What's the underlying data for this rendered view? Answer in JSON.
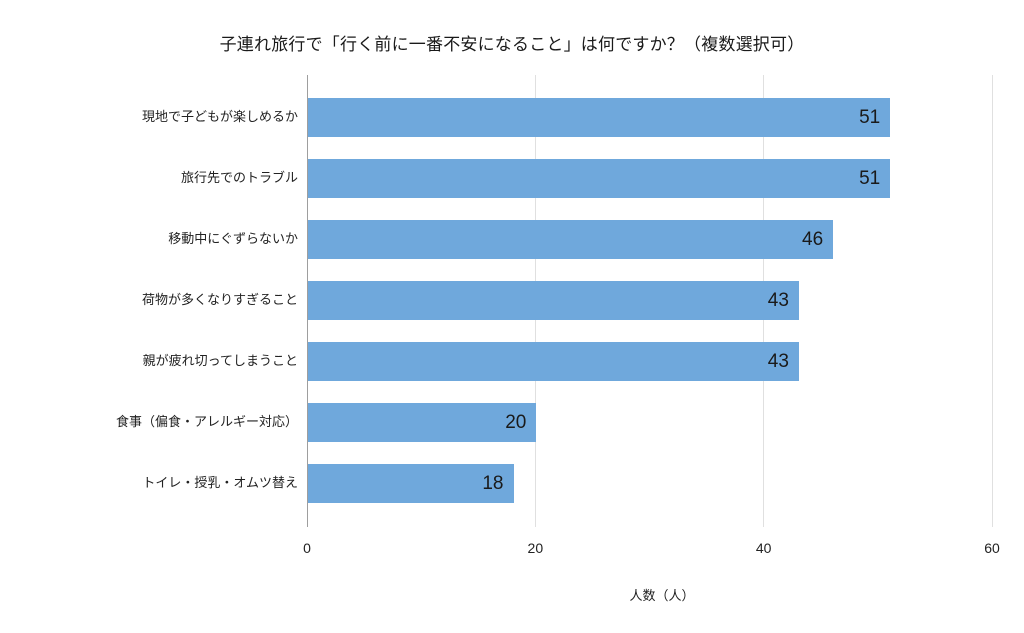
{
  "chart_data": {
    "type": "bar",
    "orientation": "horizontal",
    "title": "子連れ旅行で「行く前に一番不安になること」は何ですか？（複数選択可）",
    "xlabel": "人数（人）",
    "ylabel": "",
    "categories": [
      "現地で子どもが楽しめるか",
      "旅行先でのトラブル",
      "移動中にぐずらないか",
      "荷物が多くなりすぎること",
      "親が疲れ切ってしまうこと",
      "食事（偏食・アレルギー対応）",
      "トイレ・授乳・オムツ替え"
    ],
    "values": [
      51,
      51,
      46,
      43,
      43,
      20,
      18
    ],
    "xlim": [
      0,
      60
    ],
    "xticks": [
      "0",
      "20",
      "40",
      "60"
    ],
    "grid": true,
    "legend": null,
    "bar_color": "#6fa8dc",
    "data_labels": [
      "51",
      "51",
      "46",
      "43",
      "43",
      "20",
      "18"
    ]
  }
}
